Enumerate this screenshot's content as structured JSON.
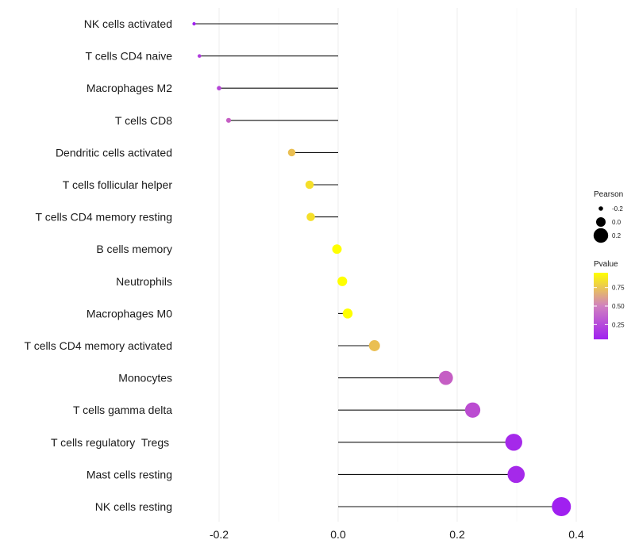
{
  "chart_data": {
    "type": "lollipop",
    "title": "",
    "xlabel": "",
    "ylabel": "",
    "xlim": [
      -0.27,
      0.41
    ],
    "x_ticks": [
      -0.2,
      0.0,
      0.2,
      0.4
    ],
    "x_tick_labels": [
      "-0.2",
      "0.0",
      "0.2",
      "0.4"
    ],
    "grid": true,
    "categories": [
      "NK cells activated",
      "T cells CD4 naive",
      "Macrophages M2",
      "T cells CD8",
      "Dendritic cells activated",
      "T cells follicular helper",
      "T cells CD4 memory resting",
      "B cells memory",
      "Neutrophils",
      "Macrophages M0",
      "T cells CD4 memory activated",
      "Monocytes",
      "T cells gamma delta",
      "T cells regulatory  Tregs ",
      "Mast cells resting",
      "NK cells resting"
    ],
    "values": [
      -0.242,
      -0.233,
      -0.2,
      -0.184,
      -0.078,
      -0.048,
      -0.046,
      -0.002,
      0.007,
      0.016,
      0.061,
      0.181,
      0.226,
      0.295,
      0.299,
      0.375
    ],
    "pvalues": [
      0.05,
      0.2,
      0.25,
      0.4,
      0.75,
      0.85,
      0.85,
      1.0,
      1.0,
      1.0,
      0.75,
      0.4,
      0.3,
      0.1,
      0.1,
      0.05
    ],
    "size_legend": {
      "title": "Pearson",
      "items": [
        {
          "label": "-0.2",
          "value": -0.2
        },
        {
          "label": "0.0",
          "value": 0.0
        },
        {
          "label": "0.2",
          "value": 0.2
        }
      ]
    },
    "color_legend": {
      "title": "Pvalue",
      "range": [
        0.05,
        0.95
      ],
      "breaks": [
        {
          "label": "0.75",
          "value": 0.75
        },
        {
          "label": "0.50",
          "value": 0.5
        },
        {
          "label": "0.25",
          "value": 0.25
        }
      ],
      "low_color": "#a020f0",
      "high_color": "#ffff00"
    },
    "legend_position": "right"
  }
}
